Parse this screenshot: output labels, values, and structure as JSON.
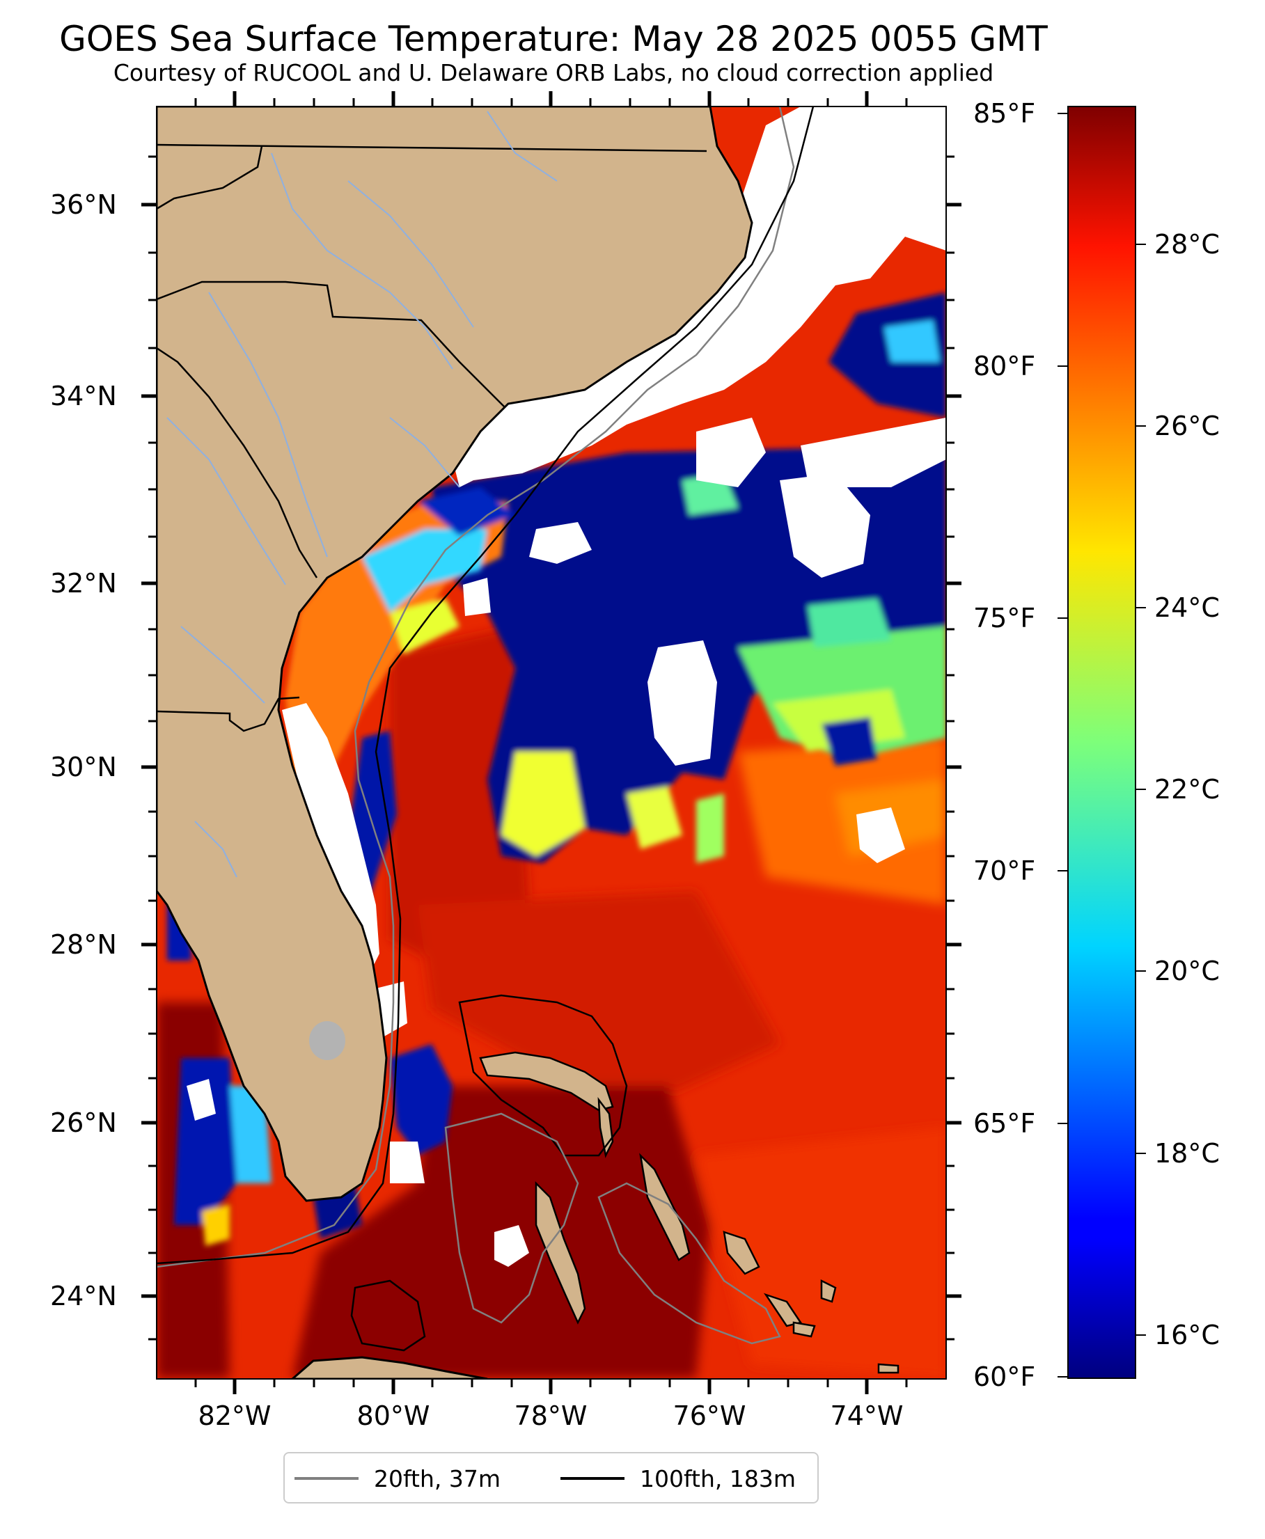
{
  "title": "GOES Sea Surface Temperature: May 28 2025 0055 GMT",
  "subtitle": "Courtesy of RUCOOL and U. Delaware ORB Labs, no cloud correction applied",
  "map": {
    "lat_range": [
      23.1,
      37.0
    ],
    "lon_range": [
      -83.0,
      -73.0
    ],
    "lat_labels": [
      "36°N",
      "34°N",
      "32°N",
      "30°N",
      "28°N",
      "26°N",
      "24°N"
    ],
    "lon_labels": [
      "82°W",
      "80°W",
      "78°W",
      "76°W",
      "74°W"
    ],
    "land_color": "#d2b48c",
    "cloud_color": "#ffffff",
    "river_color": "#8fb0e0"
  },
  "colorbar": {
    "colormap": "jet",
    "range_f": [
      60,
      85
    ],
    "fahrenheit_labels": [
      "85°F",
      "80°F",
      "75°F",
      "70°F",
      "65°F",
      "60°F"
    ],
    "celsius_labels": [
      "28°C",
      "26°C",
      "24°C",
      "22°C",
      "20°C",
      "18°C",
      "16°C"
    ]
  },
  "legend": {
    "items": [
      {
        "label": "20fth, 37m",
        "color": "#808080"
      },
      {
        "label": "100fth, 183m",
        "color": "#000000"
      }
    ]
  }
}
